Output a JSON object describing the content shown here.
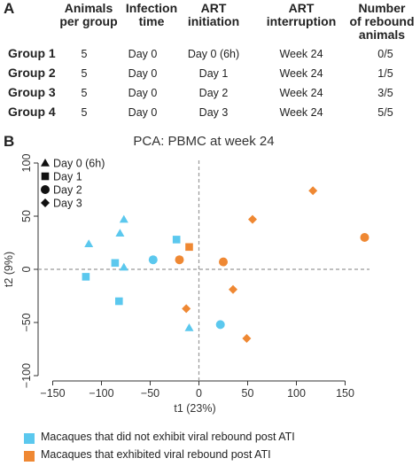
{
  "panel_a": {
    "label": "A",
    "headers": [
      [
        "Animals",
        "per group"
      ],
      [
        "Infection",
        "time"
      ],
      [
        "ART",
        "initiation"
      ],
      [
        "ART",
        "interruption"
      ],
      [
        "Number",
        "of rebound",
        "animals"
      ]
    ],
    "rows": [
      {
        "group": "Group 1",
        "animals": "5",
        "infection": "Day 0",
        "art_init": "Day 0 (6h)",
        "art_int": "Week 24",
        "rebound": "0/5"
      },
      {
        "group": "Group 2",
        "animals": "5",
        "infection": "Day 0",
        "art_init": "Day 1",
        "art_int": "Week 24",
        "rebound": "1/5"
      },
      {
        "group": "Group 3",
        "animals": "5",
        "infection": "Day 0",
        "art_init": "Day 2",
        "art_int": "Week 24",
        "rebound": "3/5"
      },
      {
        "group": "Group 4",
        "animals": "5",
        "infection": "Day 0",
        "art_init": "Day 3",
        "art_int": "Week 24",
        "rebound": "5/5"
      }
    ]
  },
  "panel_b": {
    "label": "B",
    "colors": {
      "no_rebound": "#5bc8ee",
      "rebound": "#ef8833",
      "axis": "#333333",
      "guide": "#999999"
    },
    "shape_legend": [
      {
        "shape": "triangle",
        "label": "Day 0 (6h)"
      },
      {
        "shape": "square",
        "label": "Day 1"
      },
      {
        "shape": "circle",
        "label": "Day 2"
      },
      {
        "shape": "diamond",
        "label": "Day 3"
      }
    ],
    "color_legend": [
      {
        "key": "no_rebound",
        "label": "Macaques that did not exhibit viral rebound post ATI"
      },
      {
        "key": "rebound",
        "label": "Macaques that exhibited viral rebound post ATI"
      }
    ]
  },
  "chart_data": {
    "type": "scatter",
    "title": "PCA: PBMC at week 24",
    "xlabel": "t1 (23%)",
    "ylabel": "t2 (9%)",
    "xlim": [
      -165,
      175
    ],
    "ylim": [
      -105,
      105
    ],
    "xticks": [
      -150,
      -100,
      -50,
      0,
      50,
      100,
      150
    ],
    "yticks": [
      -100,
      -50,
      0,
      50,
      100
    ],
    "points": [
      {
        "x": -77,
        "y": 47,
        "shape": "triangle",
        "group": "no_rebound"
      },
      {
        "x": -113,
        "y": 24,
        "shape": "triangle",
        "group": "no_rebound"
      },
      {
        "x": -81,
        "y": 34,
        "shape": "triangle",
        "group": "no_rebound"
      },
      {
        "x": -77,
        "y": 2,
        "shape": "triangle",
        "group": "no_rebound"
      },
      {
        "x": -10,
        "y": -55,
        "shape": "triangle",
        "group": "no_rebound"
      },
      {
        "x": -23,
        "y": 28,
        "shape": "square",
        "group": "no_rebound"
      },
      {
        "x": -86,
        "y": 6,
        "shape": "square",
        "group": "no_rebound"
      },
      {
        "x": -116,
        "y": -7,
        "shape": "square",
        "group": "no_rebound"
      },
      {
        "x": -82,
        "y": -30,
        "shape": "square",
        "group": "no_rebound"
      },
      {
        "x": -10,
        "y": 21,
        "shape": "square",
        "group": "rebound"
      },
      {
        "x": -47,
        "y": 9,
        "shape": "circle",
        "group": "no_rebound"
      },
      {
        "x": 22,
        "y": -52,
        "shape": "circle",
        "group": "no_rebound"
      },
      {
        "x": -20,
        "y": 9,
        "shape": "circle",
        "group": "rebound"
      },
      {
        "x": 25,
        "y": 7,
        "shape": "circle",
        "group": "rebound"
      },
      {
        "x": 170,
        "y": 30,
        "shape": "circle",
        "group": "rebound"
      },
      {
        "x": 117,
        "y": 74,
        "shape": "diamond",
        "group": "rebound"
      },
      {
        "x": 55,
        "y": 47,
        "shape": "diamond",
        "group": "rebound"
      },
      {
        "x": 35,
        "y": -19,
        "shape": "diamond",
        "group": "rebound"
      },
      {
        "x": -13,
        "y": -37,
        "shape": "diamond",
        "group": "rebound"
      },
      {
        "x": 49,
        "y": -65,
        "shape": "diamond",
        "group": "rebound"
      }
    ],
    "reference_lines": {
      "x": 0,
      "y": 0
    }
  }
}
